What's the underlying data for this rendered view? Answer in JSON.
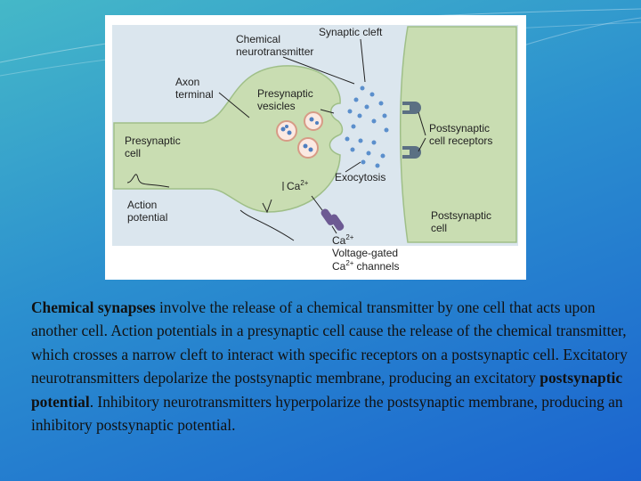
{
  "diagram": {
    "labels": {
      "chemical_neurotransmitter": [
        "Chemical",
        "neurotransmitter"
      ],
      "synaptic_cleft": "Synaptic cleft",
      "axon_terminal": [
        "Axon",
        "terminal"
      ],
      "presynaptic_vesicles": [
        "Presynaptic",
        "vesicles"
      ],
      "postsynaptic_receptors": [
        "Postsynaptic",
        "cell receptors"
      ],
      "presynaptic_cell": [
        "Presynaptic",
        "cell"
      ],
      "exocytosis": "Exocytosis",
      "calcium_entry": {
        "text": "Ca",
        "sup": "2+"
      },
      "action_potential": [
        "Action",
        "potential"
      ],
      "postsynaptic_cell": [
        "Postsynaptic",
        "cell"
      ],
      "channel_ion": {
        "text": "Ca",
        "sup": "2+"
      },
      "channel_label": {
        "line1": "Voltage-gated",
        "ion": "Ca",
        "sup": "2+",
        "rest": "channels"
      }
    }
  },
  "paragraph": {
    "runs": [
      {
        "text": "Chemical synapses",
        "style": "bold"
      },
      {
        "text": " involve the release of a chemical transmitter by one cell that acts upon another cell. Action potentials in a presynaptic cell cause the release of the chemical transmitter, which crosses a narrow cleft to interact with specific receptors on a postsynaptic cell. Excitatory neurotransmitters depolarize the postsynaptic membrane, producing an excitatory "
      },
      {
        "text": "postsynaptic potential",
        "style": "bold"
      },
      {
        "text": ". Inhibitory neurotransmitters hyperpolarize the postsynaptic membrane, producing an inhibitory postsynaptic potential."
      }
    ]
  }
}
